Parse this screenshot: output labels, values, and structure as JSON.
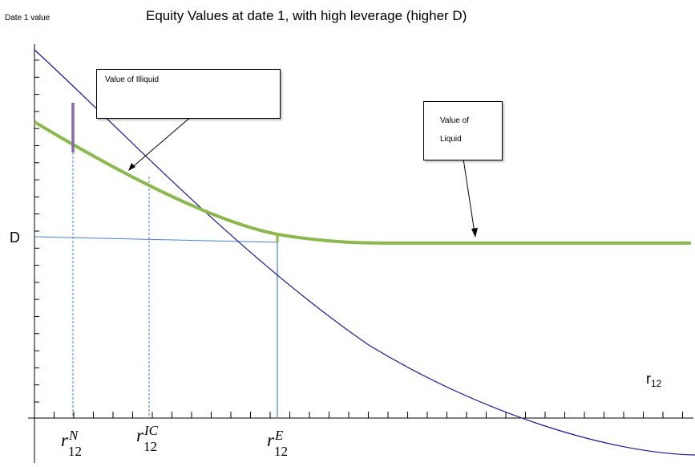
{
  "title": "Equity Values at date 1, with high leverage (higher D)",
  "y_axis_label": "Date 1 value",
  "x_axis_label": {
    "base": "r",
    "sub": "12"
  },
  "d_label": "D",
  "callouts": {
    "illiquid": "Value of Illiquid",
    "liquid_line1": "Value of",
    "liquid_line2": "Liquid"
  },
  "markers": [
    {
      "base": "r",
      "sub": "12",
      "sup": "N"
    },
    {
      "base": "r",
      "sub": "12",
      "sup": "IC"
    },
    {
      "base": "r",
      "sub": "12",
      "sup": "E"
    }
  ],
  "colors": {
    "illiquid_curve": "#1a1a8c",
    "liquid_curve": "#8cb84f",
    "guide_lines": "#4a7fc8",
    "gap_bar": "#8a67a8"
  }
}
